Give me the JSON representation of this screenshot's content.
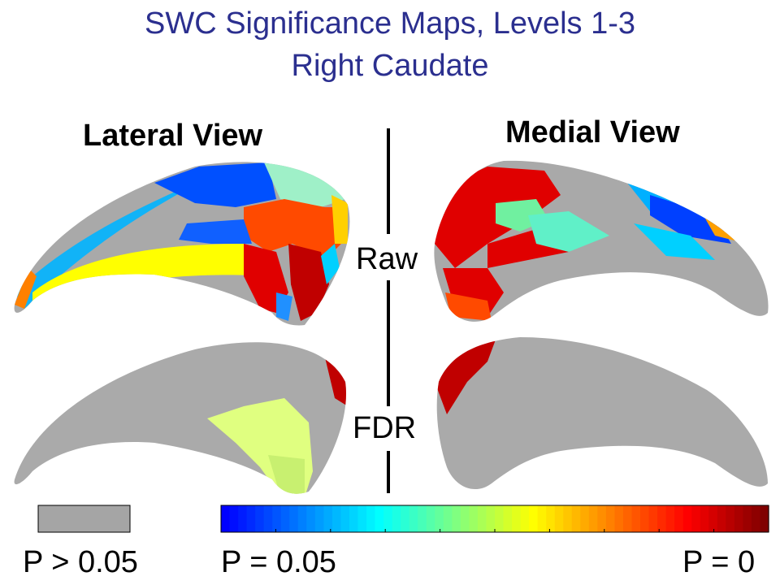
{
  "title": {
    "line1": "SWC Significance Maps, Levels 1-3",
    "line2": "Right Caudate"
  },
  "views": {
    "lateral": "Lateral View",
    "medial": "Medial View"
  },
  "rows": {
    "raw": "Raw",
    "fdr": "FDR"
  },
  "legend": {
    "nonsig_label": "P > 0.05",
    "scale_low_label": "P = 0.05",
    "scale_high_label": "P = 0",
    "nonsig_color": "#a5a5a5",
    "colormap": "jet",
    "colormap_bins": 64
  },
  "colors": {
    "title": "#2b2f8f",
    "surface_gray": "#a8a8a8"
  }
}
